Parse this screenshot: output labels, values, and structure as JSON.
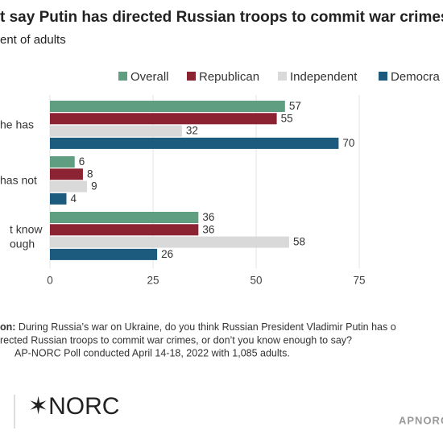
{
  "chart_data": {
    "type": "bar",
    "orientation": "horizontal",
    "title": "t say Putin has directed Russian troops to commit war crimes",
    "subtitle": "ent of adults",
    "categories": [
      "he has",
      "has not",
      "t know\nough"
    ],
    "series": [
      {
        "name": "Overall",
        "color": "#5f9e80",
        "values": [
          57,
          6,
          36
        ]
      },
      {
        "name": "Republican",
        "color": "#8c2332",
        "values": [
          55,
          8,
          36
        ]
      },
      {
        "name": "Independent",
        "color": "#d9d9d9",
        "values": [
          32,
          9,
          58
        ]
      },
      {
        "name": "Democra",
        "color": "#1d5b7e",
        "values": [
          70,
          4,
          26
        ]
      }
    ],
    "xlim": [
      0,
      100
    ],
    "xticks": [
      0,
      25,
      50,
      75
    ],
    "grid": true,
    "note_label": "on:",
    "note_lines": [
      " During Russia’s war on Ukraine, do you think Russian President Vladimir Putin has o",
      "rected Russian troops to commit war crimes, or don’t you know enough to say?",
      "AP-NORC Poll conducted April 14-18, 2022 with 1,085 adults."
    ],
    "logo": "✶NORC",
    "brand": "APNORC"
  }
}
